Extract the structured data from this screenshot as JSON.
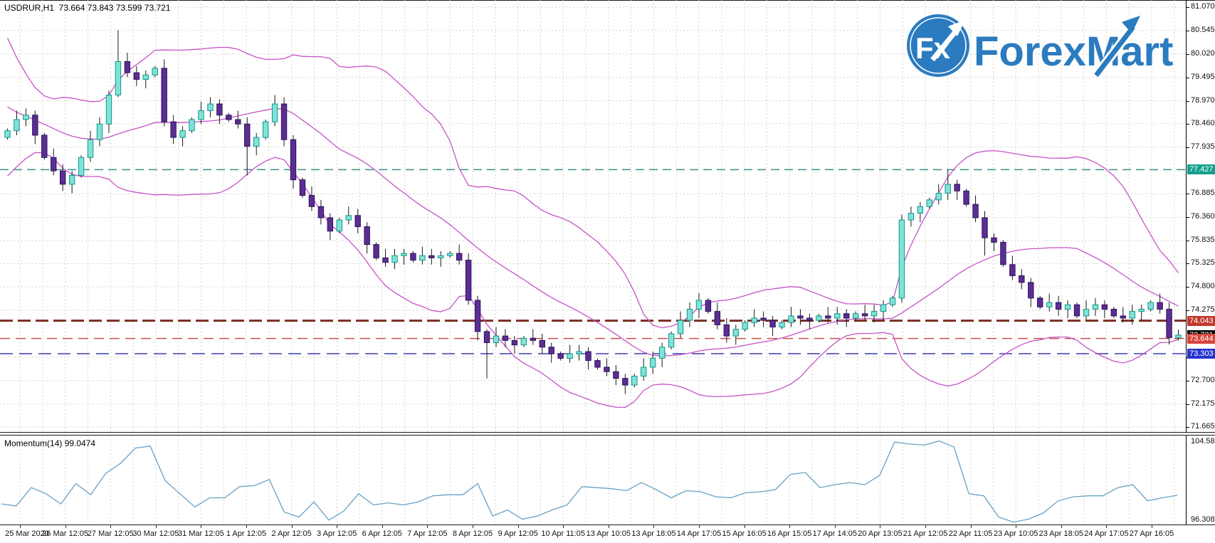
{
  "chart": {
    "symbol_title": "USDRUR,H1  73.664 73.843 73.599 73.721"
  },
  "logo": {
    "circle_text": "Fx",
    "name": "ForexMart",
    "color": "#2b7bc0"
  },
  "momentum": {
    "label": "Momentum(14) 99.0474",
    "axis_max": "104.5861",
    "axis_min": "96.3088"
  },
  "chart_data": {
    "type": "candlestick",
    "symbol": "USDRUR",
    "timeframe": "H1",
    "current_bar": {
      "open": 73.664,
      "high": 73.843,
      "low": 73.599,
      "close": 73.721
    },
    "price_panel": {
      "ylim": [
        71.5,
        81.1
      ],
      "axis_ticks": [
        "81.070",
        "80.545",
        "80.020",
        "79.495",
        "78.970",
        "78.460",
        "77.935",
        "76.885",
        "76.360",
        "75.835",
        "75.325",
        "74.800",
        "74.275",
        "73.225",
        "72.700",
        "72.175",
        "71.665"
      ],
      "levels": [
        {
          "value": 77.427,
          "label": "77.427",
          "badge_color": "#14a08e",
          "line_color": "#3d8f8a",
          "width": 1.5,
          "dash": "12,7"
        },
        {
          "value": 74.043,
          "label": "74.043",
          "badge_color": "#c0392b",
          "line_color": "#7a2e22",
          "width": 3,
          "dash": "18,7"
        },
        {
          "value": 73.644,
          "label": "73.644",
          "badge_color": "#d8453a",
          "line_color": "#cc5050",
          "width": 1.5,
          "dash": "14,8"
        },
        {
          "value": 73.303,
          "label": "73.303",
          "badge_color": "#2433cf",
          "line_color": "#3b3bb5",
          "width": 1.5,
          "dash": "18,9"
        }
      ],
      "close_marker": {
        "value": 73.721,
        "label": "73.721",
        "badge_color": "#000000"
      },
      "first_open": 78.15,
      "closes": [
        78.3,
        78.55,
        78.65,
        78.2,
        77.7,
        77.4,
        77.1,
        77.3,
        77.7,
        78.1,
        78.45,
        79.1,
        79.85,
        79.6,
        79.45,
        79.55,
        79.7,
        78.5,
        78.15,
        78.3,
        78.55,
        78.75,
        78.9,
        78.65,
        78.55,
        78.45,
        77.95,
        78.15,
        78.5,
        78.9,
        78.1,
        77.2,
        76.85,
        76.6,
        76.35,
        76.05,
        76.3,
        76.4,
        76.15,
        75.75,
        75.45,
        75.35,
        75.5,
        75.55,
        75.4,
        75.5,
        75.45,
        75.5,
        75.55,
        75.4,
        74.5,
        73.8,
        73.55,
        73.7,
        73.6,
        73.5,
        73.65,
        73.6,
        73.45,
        73.3,
        73.2,
        73.3,
        73.35,
        73.15,
        73.0,
        72.9,
        72.75,
        72.6,
        72.8,
        73.0,
        73.2,
        73.45,
        73.75,
        74.05,
        74.3,
        74.5,
        74.25,
        73.95,
        73.7,
        73.85,
        74.0,
        74.1,
        74.05,
        73.9,
        74.0,
        74.15,
        74.1,
        74.05,
        74.15,
        74.1,
        74.2,
        74.1,
        74.2,
        74.15,
        74.25,
        74.4,
        74.55,
        76.3,
        76.45,
        76.6,
        76.75,
        76.9,
        77.1,
        76.95,
        76.65,
        76.35,
        75.9,
        75.8,
        75.3,
        75.05,
        74.9,
        74.55,
        74.35,
        74.45,
        74.3,
        74.4,
        74.15,
        74.3,
        74.4,
        74.3,
        74.15,
        74.1,
        74.25,
        74.3,
        74.45,
        74.3,
        73.66,
        73.72
      ],
      "wick_overrides": {
        "12": {
          "h": 80.55
        },
        "26": {
          "l": 77.3
        },
        "50": {
          "l": 74.4
        },
        "52": {
          "l": 72.75
        },
        "67": {
          "l": 72.4
        },
        "75": {
          "h": 74.66
        },
        "97": {
          "h": 76.42
        },
        "102": {
          "h": 77.42
        },
        "106": {
          "l": 75.5
        },
        "127": {
          "h": 73.843,
          "l": 73.599
        }
      },
      "bollinger": {
        "period": 20,
        "deviation": 2,
        "seed_closes": [
          81.3,
          80.9,
          80.4,
          80.0,
          79.6,
          79.3,
          79.0,
          78.8,
          78.6,
          78.5,
          78.4,
          78.35,
          78.3,
          78.3,
          78.35,
          78.3,
          78.3,
          78.35,
          78.3,
          78.3
        ]
      }
    },
    "momentum_panel": {
      "indicator": "Momentum",
      "period": 14,
      "current": 99.0474,
      "ylim": [
        96.3088,
        104.5861
      ],
      "values": [
        98.2,
        98.0,
        99.8,
        99.2,
        98.2,
        100.2,
        99.1,
        101.2,
        102.2,
        103.7,
        103.9,
        100.5,
        99.2,
        97.9,
        98.8,
        98.8,
        99.9,
        100.0,
        100.6,
        97.4,
        96.9,
        98.4,
        96.6,
        97.5,
        99.2,
        98.1,
        98.3,
        98.1,
        98.4,
        99.0,
        99.1,
        99.1,
        100.2,
        97.0,
        97.6,
        96.7,
        97.0,
        97.6,
        98.1,
        99.9,
        99.8,
        99.7,
        99.5,
        100.3,
        99.6,
        98.8,
        99.5,
        99.4,
        98.9,
        98.8,
        99.3,
        99.4,
        99.6,
        101.1,
        101.3,
        99.8,
        100.1,
        100.3,
        100.1,
        101.0,
        104.3,
        104.1,
        104.0,
        104.4,
        103.8,
        99.2,
        99.0,
        96.9,
        96.4,
        96.7,
        97.3,
        98.5,
        98.9,
        99.0,
        99.0,
        99.8,
        100.1,
        98.5,
        98.8,
        99.05
      ]
    },
    "time_axis": [
      "25 Mar 2020",
      "26 Mar 12:05",
      "27 Mar 12:05",
      "30 Mar 12:05",
      "31 Mar 12:05",
      "1 Apr 12:05",
      "2 Apr 12:05",
      "3 Apr 12:05",
      "6 Apr 12:05",
      "7 Apr 12:05",
      "8 Apr 12:05",
      "9 Apr 12:05",
      "10 Apr 11:05",
      "13 Apr 10:05",
      "13 Apr 18:05",
      "14 Apr 17:05",
      "15 Apr 16:05",
      "16 Apr 15:05",
      "17 Apr 14:05",
      "20 Apr 13:05",
      "21 Apr 12:05",
      "22 Apr 11:05",
      "23 Apr 10:05",
      "23 Apr 18:05",
      "24 Apr 17:05",
      "27 Apr 16:05"
    ]
  },
  "colors": {
    "bull_fill": "#7fe3d8",
    "bull_stroke": "#13968c",
    "bear_fill": "#5b2e91",
    "bear_stroke": "#2d1260",
    "wick": "#1a1a1a",
    "bollinger": "#c653c6",
    "momentum_line": "#67a0c5",
    "grid": "#d4d4d4",
    "accent_blue": "#2b7bc0"
  }
}
